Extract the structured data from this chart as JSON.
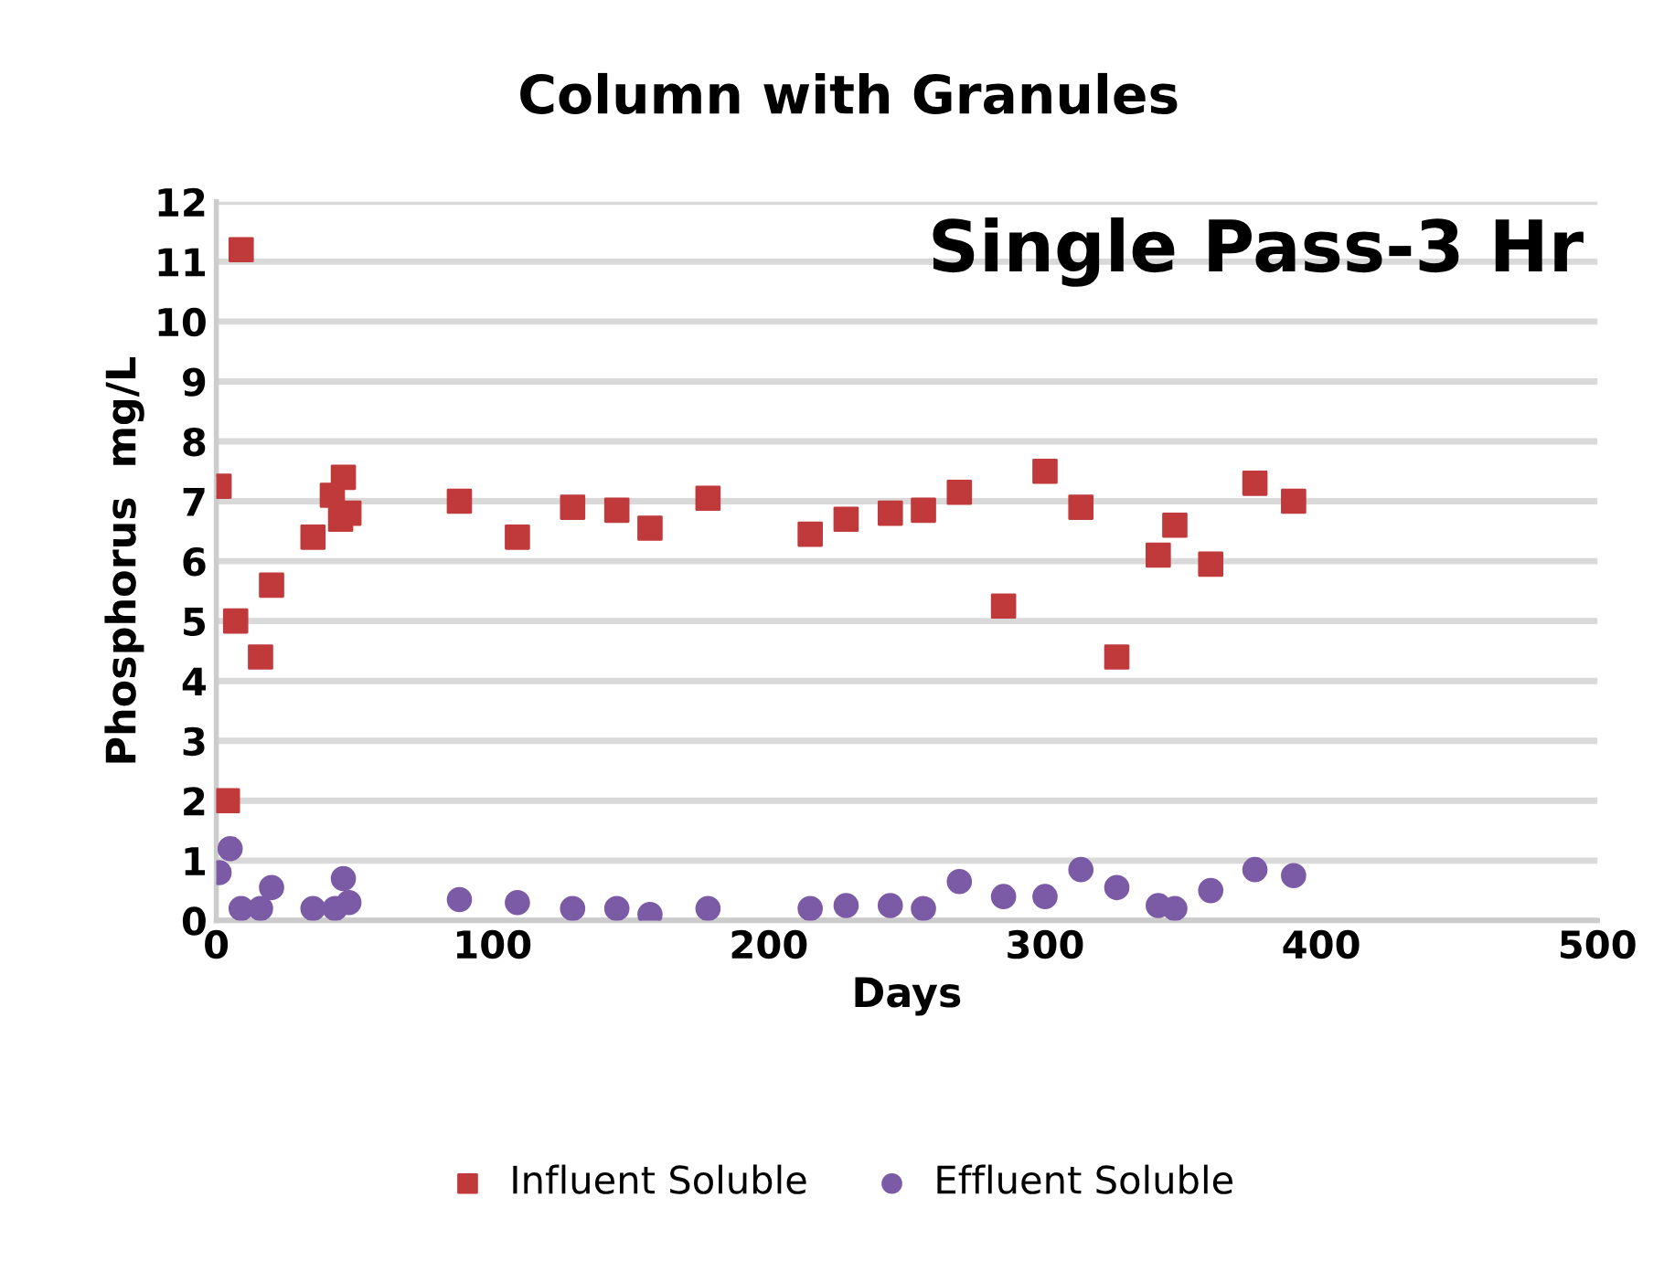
{
  "chart_data": {
    "type": "scatter",
    "title": "Column with Granules",
    "xlabel": "Days",
    "ylabel": "Phosphorus  mg/L",
    "annotations": [
      "Single Pass-3 Hr"
    ],
    "series": [
      {
        "name": "Influent Soluble",
        "color": "#c0393b",
        "marker": "square",
        "x": [
          1,
          4,
          7,
          9,
          16,
          20,
          35,
          42,
          45,
          46,
          48,
          88,
          109,
          129,
          145,
          157,
          178,
          215,
          228,
          244,
          256,
          269,
          285,
          300,
          313,
          326,
          341,
          347,
          360,
          376,
          390
        ],
        "values": [
          7.25,
          2.0,
          5.0,
          11.2,
          4.4,
          5.6,
          6.4,
          7.1,
          6.7,
          7.4,
          6.8,
          7.0,
          6.4,
          6.9,
          6.85,
          6.55,
          7.05,
          6.45,
          6.7,
          6.8,
          6.85,
          7.15,
          5.25,
          7.5,
          6.9,
          4.4,
          6.1,
          6.6,
          5.95,
          7.3,
          7.0
        ]
      },
      {
        "name": "Effluent Soluble",
        "color": "#7b5aa6",
        "marker": "circle",
        "x": [
          1,
          5,
          9,
          16,
          20,
          35,
          43,
          46,
          48,
          88,
          109,
          129,
          145,
          157,
          178,
          215,
          228,
          244,
          256,
          269,
          285,
          300,
          313,
          326,
          341,
          347,
          360,
          376,
          390
        ],
        "values": [
          0.8,
          1.2,
          0.2,
          0.2,
          0.55,
          0.2,
          0.2,
          0.7,
          0.3,
          0.35,
          0.3,
          0.2,
          0.2,
          0.1,
          0.2,
          0.2,
          0.25,
          0.25,
          0.2,
          0.65,
          0.4,
          0.4,
          0.85,
          0.55,
          0.25,
          0.2,
          0.5,
          0.85,
          0.75
        ]
      }
    ],
    "xlim": [
      0,
      500
    ],
    "xticks": [
      0,
      100,
      200,
      300,
      400,
      500
    ],
    "ylim": [
      0,
      12
    ],
    "yticks": [
      0,
      1,
      2,
      3,
      4,
      5,
      6,
      7,
      8,
      9,
      10,
      11,
      12
    ],
    "grid": "y",
    "legend": "bottom"
  }
}
